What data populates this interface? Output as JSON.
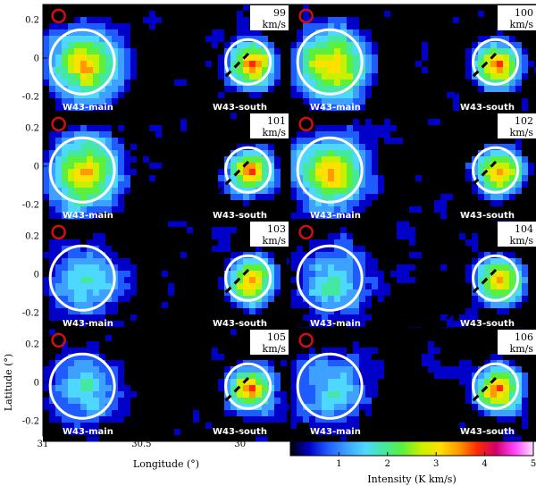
{
  "chart_data": {
    "type": "heatmap",
    "description_panels": "velocity channel maps",
    "xlabel": "Longitude (°)",
    "ylabel": "Latitude (°)",
    "xlim": [
      31.0,
      29.75
    ],
    "ylim": [
      -0.28,
      0.28
    ],
    "x_ticks": [
      "31",
      "30.5",
      "30"
    ],
    "y_ticks": [
      "0.2",
      "0",
      "-0.2"
    ],
    "colorbar": {
      "label": "Intensity (K km/s)",
      "range": [
        0,
        5
      ],
      "ticks": [
        "1",
        "2",
        "3",
        "4",
        "5"
      ],
      "colors": [
        "#000000",
        "#0000c8",
        "#1e5cff",
        "#3ea0ff",
        "#4fd8ff",
        "#44e8a0",
        "#5cf03c",
        "#c8f000",
        "#ffe000",
        "#ff9a00",
        "#ff2a00",
        "#d0006a",
        "#ff44ff",
        "#ffe0ff"
      ]
    },
    "panels": [
      {
        "velocity": "99",
        "unit": "km/s",
        "labels": [
          "W43-main",
          "W43-south"
        ]
      },
      {
        "velocity": "100",
        "unit": "km/s",
        "labels": [
          "W43-main",
          "W43-south"
        ]
      },
      {
        "velocity": "101",
        "unit": "km/s",
        "labels": [
          "W43-main",
          "W43-south"
        ]
      },
      {
        "velocity": "102",
        "unit": "km/s",
        "labels": [
          "W43-main",
          "W43-south"
        ]
      },
      {
        "velocity": "103",
        "unit": "km/s",
        "labels": [
          "W43-main",
          "W43-south"
        ]
      },
      {
        "velocity": "104",
        "unit": "km/s",
        "labels": [
          "W43-main",
          "W43-south"
        ]
      },
      {
        "velocity": "105",
        "unit": "km/s",
        "labels": [
          "W43-main",
          "W43-south"
        ]
      },
      {
        "velocity": "106",
        "unit": "km/s",
        "labels": [
          "W43-main",
          "W43-south"
        ]
      }
    ],
    "region_circles": {
      "W43-main": {
        "l": 30.8,
        "b": -0.02,
        "r": 0.12
      },
      "W43-south": {
        "l": 29.96,
        "b": -0.02,
        "r": 0.08
      },
      "marker": {
        "l": 30.92,
        "b": 0.22,
        "r": 0.02
      }
    }
  }
}
